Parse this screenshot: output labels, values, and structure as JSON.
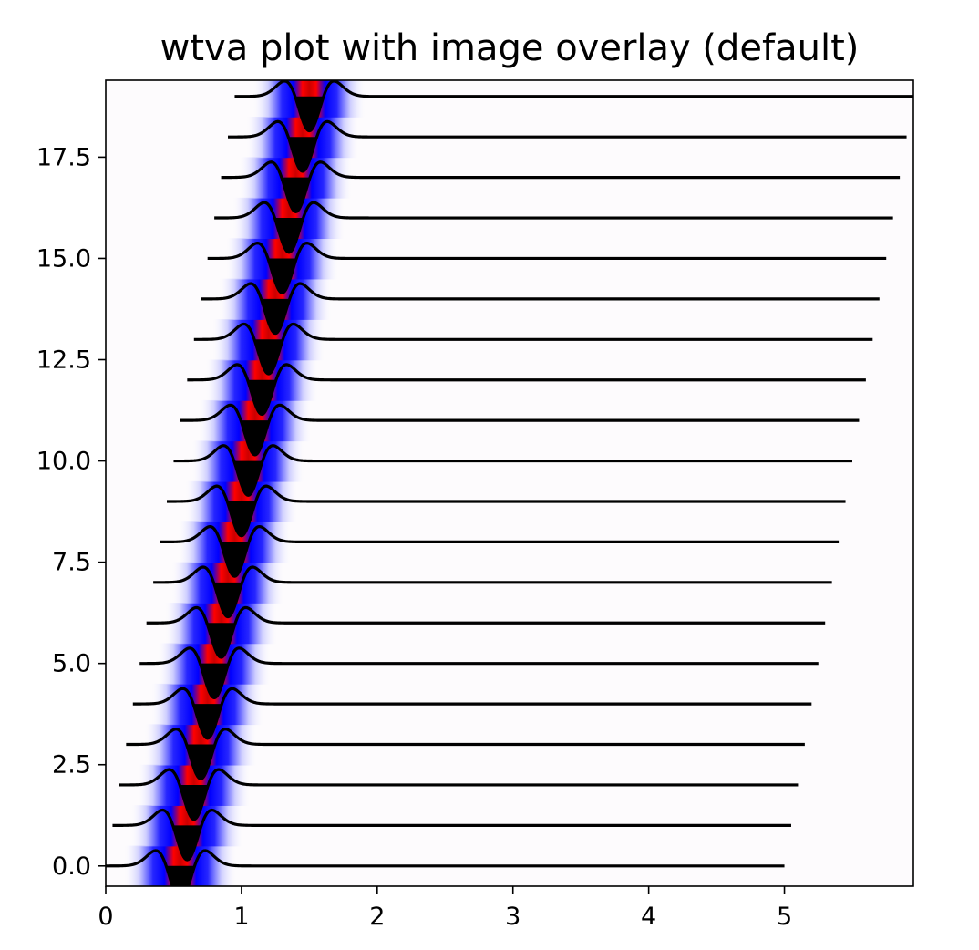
{
  "chart_data": {
    "type": "line",
    "title": "wtva plot with image overlay (default)",
    "xlabel": "",
    "ylabel": "",
    "xlim": [
      0,
      5.95
    ],
    "ylim": [
      -0.5,
      19.4
    ],
    "grid": false,
    "legend": "none",
    "x_ticks": [
      0,
      1,
      2,
      3,
      4,
      5
    ],
    "x_tick_labels": [
      "0",
      "1",
      "2",
      "3",
      "4",
      "5"
    ],
    "y_ticks": [
      0.0,
      2.5,
      5.0,
      7.5,
      10.0,
      12.5,
      15.0,
      17.5
    ],
    "y_tick_labels": [
      "0.0",
      "2.5",
      "5.0",
      "7.5",
      "10.0",
      "12.5",
      "15.0",
      "17.5"
    ],
    "traces": {
      "count": 20,
      "baseline_y_start": 0,
      "baseline_y_step": 1,
      "x_start_first": 0.0,
      "x_start_step": 0.05,
      "x_end_first": 5.0,
      "x_end_step": 0.05,
      "pulse_center_first": 0.55,
      "pulse_center_step": 0.05,
      "wiggle_fill": "positive",
      "line_color": "#000000",
      "fill_color": "#000000"
    },
    "image_overlay": {
      "colormap": "seismic",
      "positive_color": "#ff0000",
      "negative_color": "#0000ff",
      "zero_color": "#ffffff"
    }
  }
}
